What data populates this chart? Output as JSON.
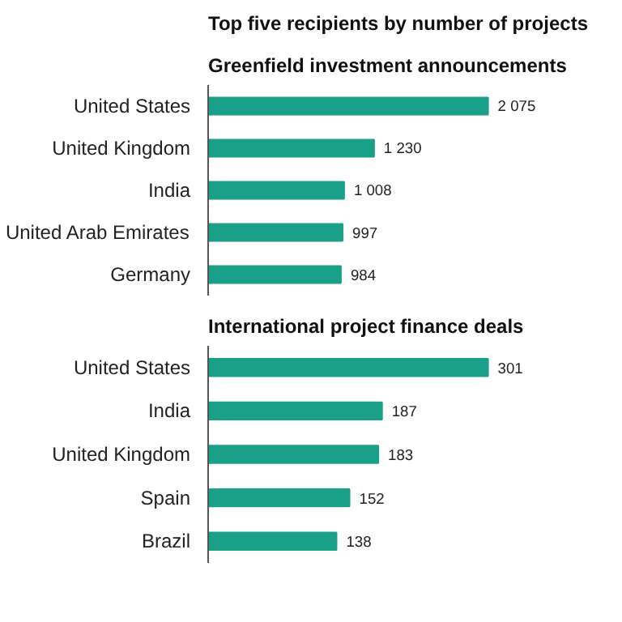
{
  "chart_data": [
    {
      "type": "bar",
      "orientation": "horizontal",
      "title": "Top five recipients by number of projects",
      "subtitle": "Greenfield investment announcements",
      "categories": [
        "United States",
        "United Kingdom",
        "India",
        "United Arab Emirates",
        "Germany"
      ],
      "values": [
        2075,
        1230,
        1008,
        997,
        984
      ],
      "color": "#1aa088",
      "data_labels": true,
      "value_labels": [
        "2 075",
        "1 230",
        "1 008",
        "997",
        "984"
      ],
      "tick_labels": "y",
      "grid": false
    },
    {
      "type": "bar",
      "orientation": "horizontal",
      "title": "International project finance deals",
      "categories": [
        "United States",
        "India",
        "United Kingdom",
        "Spain",
        "Brazil"
      ],
      "values": [
        301,
        187,
        183,
        152,
        138
      ],
      "color": "#1aa088",
      "data_labels": true,
      "value_labels": [
        "301",
        "187",
        "183",
        "152",
        "138"
      ],
      "tick_labels": "y",
      "grid": false
    }
  ]
}
